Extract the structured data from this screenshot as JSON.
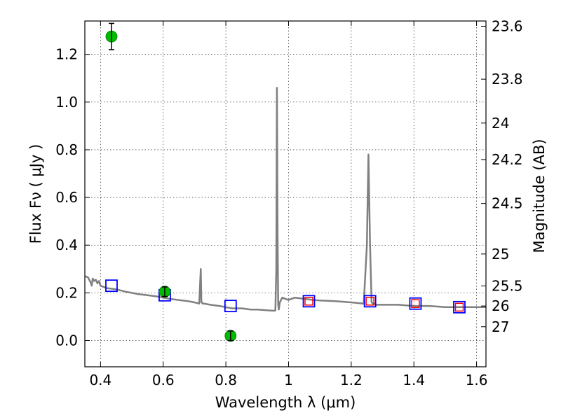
{
  "chart_data": {
    "type": "line",
    "title": "",
    "xlabel": "Wavelength  λ (μm)",
    "ylabel": "Flux  Fν  ( μJy )",
    "y2label": "Magnitude (AB)",
    "xlim": [
      0.35,
      1.63
    ],
    "ylim": [
      -0.11,
      1.34
    ],
    "grid": true,
    "x_ticks": [
      0.4,
      0.6,
      0.8,
      1.0,
      1.2,
      1.4,
      1.6
    ],
    "x_tick_labels": [
      "0.4",
      "0.6",
      "0.8",
      "1",
      "1.2",
      "1.4",
      "1.6"
    ],
    "y_ticks": [
      0.0,
      0.2,
      0.4,
      0.6,
      0.8,
      1.0,
      1.2
    ],
    "y_tick_labels": [
      "0.0",
      "0.2",
      "0.4",
      "0.6",
      "0.8",
      "1.0",
      "1.2"
    ],
    "y2_ticks": [
      {
        "label": "23.6",
        "flux": 1.318
      },
      {
        "label": "23.8",
        "flux": 1.096
      },
      {
        "label": "24",
        "flux": 0.912
      },
      {
        "label": "24.2",
        "flux": 0.759
      },
      {
        "label": "24.5",
        "flux": 0.575
      },
      {
        "label": "25",
        "flux": 0.363
      },
      {
        "label": "25.5",
        "flux": 0.229
      },
      {
        "label": "26",
        "flux": 0.145
      },
      {
        "label": "27",
        "flux": 0.058
      }
    ],
    "series": [
      {
        "kind": "model_spectrum",
        "color": "#808080",
        "x": [
          0.35,
          0.36,
          0.37,
          0.372,
          0.375,
          0.38,
          0.385,
          0.39,
          0.395,
          0.4,
          0.42,
          0.45,
          0.48,
          0.5,
          0.52,
          0.55,
          0.58,
          0.6,
          0.62,
          0.65,
          0.68,
          0.7,
          0.715,
          0.72,
          0.722,
          0.724,
          0.726,
          0.73,
          0.75,
          0.78,
          0.8,
          0.82,
          0.85,
          0.88,
          0.9,
          0.92,
          0.95,
          0.958,
          0.961,
          0.963,
          0.965,
          0.967,
          0.969,
          0.972,
          0.98,
          1.0,
          1.02,
          1.05,
          1.08,
          1.1,
          1.15,
          1.2,
          1.24,
          1.25,
          1.255,
          1.26,
          1.265,
          1.27,
          1.275,
          1.28,
          1.3,
          1.35,
          1.4,
          1.45,
          1.5,
          1.55,
          1.6,
          1.63
        ],
        "y": [
          0.27,
          0.265,
          0.24,
          0.23,
          0.26,
          0.25,
          0.255,
          0.24,
          0.25,
          0.23,
          0.22,
          0.215,
          0.205,
          0.2,
          0.195,
          0.19,
          0.185,
          0.18,
          0.175,
          0.17,
          0.165,
          0.16,
          0.155,
          0.3,
          0.16,
          0.16,
          0.155,
          0.155,
          0.15,
          0.145,
          0.14,
          0.135,
          0.135,
          0.13,
          0.13,
          0.128,
          0.125,
          0.126,
          0.3,
          1.06,
          0.45,
          0.15,
          0.13,
          0.16,
          0.18,
          0.17,
          0.18,
          0.175,
          0.17,
          0.168,
          0.165,
          0.16,
          0.155,
          0.4,
          0.78,
          0.4,
          0.16,
          0.155,
          0.155,
          0.15,
          0.15,
          0.15,
          0.145,
          0.145,
          0.14,
          0.14,
          0.14,
          0.14
        ]
      },
      {
        "kind": "model_photometry",
        "marker": "square",
        "color": "#0000ff",
        "x": [
          0.435,
          0.605,
          0.815,
          1.065,
          1.26,
          1.405,
          1.545
        ],
        "y": [
          0.23,
          0.19,
          0.145,
          0.165,
          0.165,
          0.155,
          0.14
        ]
      },
      {
        "kind": "detected_photometry",
        "marker": "square",
        "color": "#ff0000",
        "x": [
          1.065,
          1.26,
          1.405,
          1.545
        ],
        "y": [
          0.165,
          0.165,
          0.155,
          0.14
        ]
      },
      {
        "kind": "observed_photometry",
        "marker": "circle",
        "color": "#00bb00",
        "x": [
          0.435,
          0.605,
          0.815
        ],
        "y": [
          1.275,
          0.205,
          0.02
        ],
        "yerr": [
          0.055,
          0.02,
          0.02
        ]
      }
    ]
  }
}
